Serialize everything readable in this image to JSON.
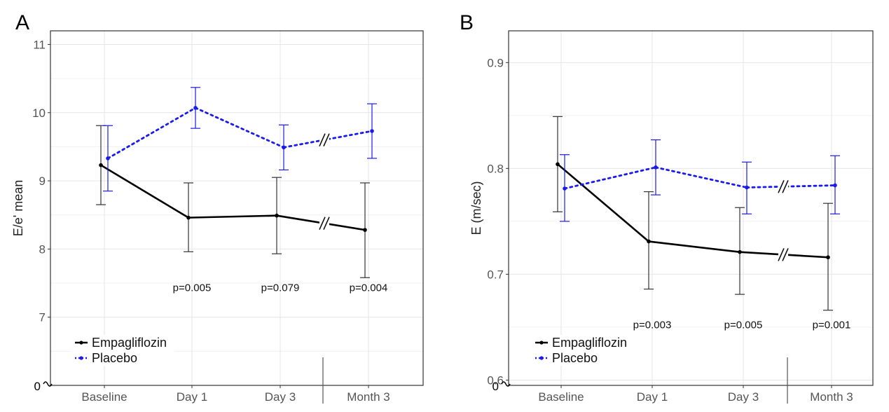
{
  "figure": {
    "colors": {
      "empagliflozin": "#000000",
      "placebo": "#1a1aee",
      "grid": "#e6e6e6",
      "frame": "#333333"
    }
  },
  "chart_data": [
    {
      "type": "line",
      "panel_label": "A",
      "ylabel": "E/e' mean",
      "xlabel": "",
      "categories": [
        "Baseline",
        "Day 1",
        "Day 3",
        "Month 3"
      ],
      "ylim": [
        6,
        11.2
      ],
      "yticks": [
        7,
        8,
        9,
        10,
        11
      ],
      "ytick_labels": [
        "7",
        "8",
        "9",
        "10",
        "11"
      ],
      "axis_break_label": "0",
      "grid": true,
      "legend_position": "bottom-left",
      "series": [
        {
          "name": "Empagliflozin",
          "style": "solid",
          "values": [
            9.23,
            8.46,
            8.49,
            8.28
          ],
          "lower": [
            8.65,
            7.96,
            7.93,
            7.58
          ],
          "upper": [
            9.81,
            8.97,
            9.05,
            8.97
          ]
        },
        {
          "name": "Placebo",
          "style": "dotted",
          "values": [
            9.33,
            10.07,
            9.49,
            9.73
          ],
          "lower": [
            8.85,
            9.77,
            9.16,
            9.33
          ],
          "upper": [
            9.81,
            10.37,
            9.82,
            10.13
          ]
        }
      ],
      "annotations": [
        "",
        "p=0.005",
        "p=0.079",
        "p=0.004"
      ],
      "annotation_y": 7.38
    },
    {
      "type": "line",
      "panel_label": "B",
      "ylabel": "E (m/sec)",
      "xlabel": "",
      "categories": [
        "Baseline",
        "Day 1",
        "Day 3",
        "Month 3"
      ],
      "ylim": [
        0.595,
        0.93
      ],
      "yticks": [
        0.6,
        0.7,
        0.8,
        0.9
      ],
      "ytick_labels": [
        "0.6",
        "0.7",
        "0.8",
        "0.9"
      ],
      "axis_break_label": "0",
      "grid": true,
      "legend_position": "bottom-left",
      "series": [
        {
          "name": "Empagliflozin",
          "style": "solid",
          "values": [
            0.804,
            0.731,
            0.721,
            0.716
          ],
          "lower": [
            0.759,
            0.686,
            0.681,
            0.666
          ],
          "upper": [
            0.849,
            0.778,
            0.763,
            0.767
          ]
        },
        {
          "name": "Placebo",
          "style": "dotted",
          "values": [
            0.781,
            0.801,
            0.782,
            0.784
          ],
          "lower": [
            0.75,
            0.775,
            0.757,
            0.757
          ],
          "upper": [
            0.813,
            0.827,
            0.806,
            0.812
          ]
        }
      ],
      "annotations": [
        "",
        "p=0.003",
        "p=0.005",
        "p=0.001"
      ],
      "annotation_y": 0.649
    }
  ]
}
